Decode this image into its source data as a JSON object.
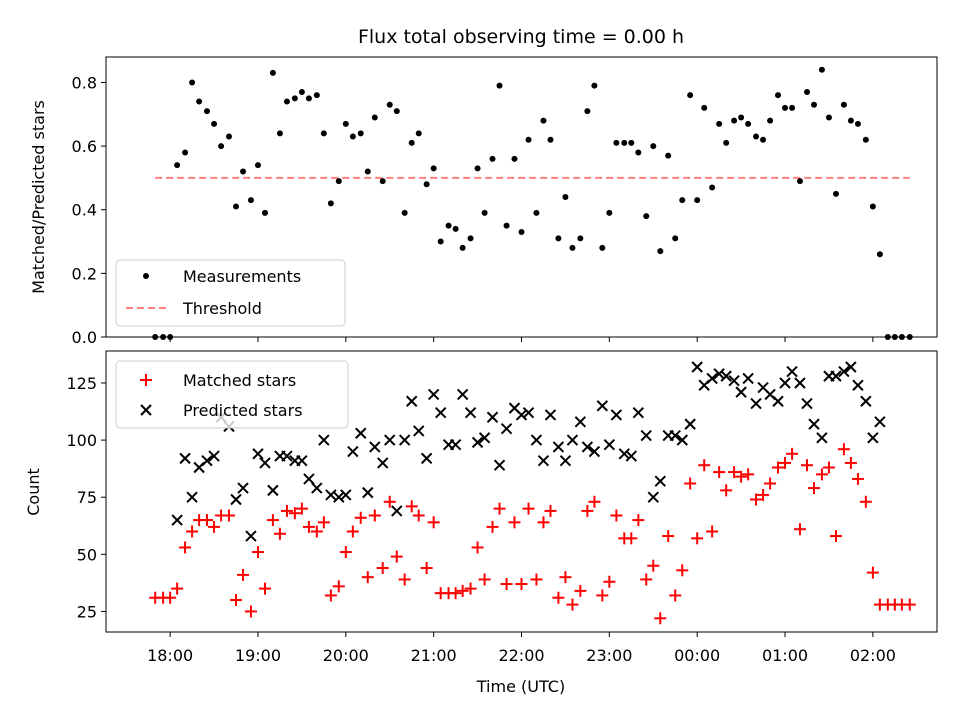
{
  "chart_data": [
    {
      "type": "scatter",
      "title": "Flux total observing time = 0.00 h",
      "xlabel": "",
      "ylabel": "Matched/Predicted stars",
      "ylim": [
        0,
        0.88
      ],
      "yticks": [
        "0.0",
        "0.2",
        "0.4",
        "0.6",
        "0.8"
      ],
      "xlim": [
        17.27,
        26.73
      ],
      "grid": false,
      "legend_position": "lower-left",
      "series": [
        {
          "name": "Measurements",
          "style": "dot",
          "color": "#000000",
          "x": [
            17.83,
            17.92,
            18.0,
            18.08,
            18.17,
            18.25,
            18.33,
            18.42,
            18.5,
            18.58,
            18.67,
            18.75,
            18.83,
            18.92,
            19.0,
            19.08,
            19.17,
            19.25,
            19.33,
            19.42,
            19.5,
            19.58,
            19.67,
            19.75,
            19.83,
            19.92,
            20.0,
            20.08,
            20.17,
            20.25,
            20.33,
            20.42,
            20.5,
            20.58,
            20.67,
            20.75,
            20.83,
            20.92,
            21.0,
            21.08,
            21.17,
            21.25,
            21.33,
            21.42,
            21.5,
            21.58,
            21.67,
            21.75,
            21.83,
            21.92,
            22.0,
            22.08,
            22.17,
            22.25,
            22.33,
            22.42,
            22.5,
            22.58,
            22.67,
            22.75,
            22.83,
            22.92,
            23.0,
            23.08,
            23.17,
            23.25,
            23.33,
            23.42,
            23.5,
            23.58,
            23.67,
            23.75,
            23.83,
            23.92,
            24.0,
            24.08,
            24.17,
            24.25,
            24.33,
            24.42,
            24.5,
            24.58,
            24.67,
            24.75,
            24.83,
            24.92,
            25.0,
            25.08,
            25.17,
            25.25,
            25.33,
            25.42,
            25.5,
            25.58,
            25.67,
            25.75,
            25.83,
            25.92,
            26.0,
            26.08,
            26.17,
            26.25,
            26.33,
            26.42
          ],
          "y": [
            0,
            0,
            0,
            0.54,
            0.58,
            0.8,
            0.74,
            0.71,
            0.67,
            0.6,
            0.63,
            0.41,
            0.52,
            0.43,
            0.54,
            0.39,
            0.83,
            0.64,
            0.74,
            0.75,
            0.77,
            0.75,
            0.76,
            0.64,
            0.42,
            0.49,
            0.67,
            0.63,
            0.64,
            0.52,
            0.69,
            0.49,
            0.73,
            0.71,
            0.39,
            0.61,
            0.64,
            0.48,
            0.53,
            0.3,
            0.35,
            0.34,
            0.28,
            0.31,
            0.53,
            0.39,
            0.56,
            0.79,
            0.35,
            0.56,
            0.33,
            0.62,
            0.39,
            0.68,
            0.62,
            0.31,
            0.44,
            0.28,
            0.31,
            0.71,
            0.79,
            0.28,
            0.39,
            0.61,
            0.61,
            0.61,
            0.58,
            0.38,
            0.6,
            0.27,
            0.57,
            0.31,
            0.43,
            0.76,
            0.43,
            0.72,
            0.47,
            0.67,
            0.61,
            0.68,
            0.69,
            0.67,
            0.63,
            0.62,
            0.68,
            0.76,
            0.72,
            0.72,
            0.49,
            0.77,
            0.73,
            0.84,
            0.69,
            0.45,
            0.73,
            0.68,
            0.67,
            0.62,
            0.41,
            0.26,
            0,
            0,
            0,
            0
          ]
        },
        {
          "name": "Threshold",
          "style": "dashed-line",
          "color": "#ff7f7f",
          "x": [
            17.83,
            26.42
          ],
          "y": [
            0.5,
            0.5
          ]
        }
      ]
    },
    {
      "type": "scatter",
      "title": "",
      "xlabel": "Time (UTC)",
      "ylabel": "Count",
      "ylim": [
        16,
        139
      ],
      "yticks": [
        "25",
        "50",
        "75",
        "100",
        "125"
      ],
      "xlim": [
        17.27,
        26.73
      ],
      "categories": [
        "18:00",
        "19:00",
        "20:00",
        "21:00",
        "22:00",
        "23:00",
        "00:00",
        "01:00",
        "02:00"
      ],
      "grid": false,
      "legend_position": "top-left",
      "series": [
        {
          "name": "Matched stars",
          "style": "plus",
          "color": "#ff0000",
          "x": [
            17.83,
            17.92,
            18.0,
            18.08,
            18.17,
            18.25,
            18.33,
            18.42,
            18.5,
            18.58,
            18.67,
            18.75,
            18.83,
            18.92,
            19.0,
            19.08,
            19.17,
            19.25,
            19.33,
            19.42,
            19.5,
            19.58,
            19.67,
            19.75,
            19.83,
            19.92,
            20.0,
            20.08,
            20.17,
            20.25,
            20.33,
            20.42,
            20.5,
            20.58,
            20.67,
            20.75,
            20.83,
            20.92,
            21.0,
            21.08,
            21.17,
            21.25,
            21.33,
            21.42,
            21.5,
            21.58,
            21.67,
            21.75,
            21.83,
            21.92,
            22.0,
            22.08,
            22.17,
            22.25,
            22.33,
            22.42,
            22.5,
            22.58,
            22.67,
            22.75,
            22.83,
            22.92,
            23.0,
            23.08,
            23.17,
            23.25,
            23.33,
            23.42,
            23.5,
            23.58,
            23.67,
            23.75,
            23.83,
            23.92,
            24.0,
            24.08,
            24.17,
            24.25,
            24.33,
            24.42,
            24.5,
            24.58,
            24.67,
            24.75,
            24.83,
            24.92,
            25.0,
            25.08,
            25.17,
            25.25,
            25.33,
            25.42,
            25.5,
            25.58,
            25.67,
            25.75,
            25.83,
            25.92,
            26.0,
            26.08,
            26.17,
            26.25,
            26.33,
            26.42
          ],
          "y": [
            31,
            31,
            31,
            35,
            53,
            60,
            65,
            65,
            62,
            67,
            67,
            30,
            41,
            25,
            51,
            35,
            65,
            59,
            69,
            68,
            70,
            62,
            60,
            64,
            32,
            36,
            51,
            60,
            66,
            40,
            67,
            44,
            73,
            49,
            39,
            71,
            67,
            44,
            64,
            33,
            33,
            33,
            34,
            35,
            53,
            39,
            62,
            70,
            37,
            64,
            37,
            70,
            39,
            64,
            69,
            31,
            40,
            28,
            34,
            69,
            73,
            32,
            38,
            67,
            57,
            57,
            65,
            39,
            45,
            22,
            58,
            32,
            43,
            81,
            57,
            89,
            60,
            86,
            78,
            86,
            84,
            85,
            74,
            76,
            81,
            88,
            90,
            94,
            61,
            89,
            79,
            85,
            88,
            58,
            96,
            90,
            83,
            73,
            42,
            28,
            28,
            28,
            28,
            28
          ]
        },
        {
          "name": "Predicted stars",
          "style": "x",
          "color": "#000000",
          "x": [
            18.08,
            18.17,
            18.25,
            18.33,
            18.42,
            18.5,
            18.58,
            18.67,
            18.75,
            18.83,
            18.92,
            19.0,
            19.08,
            19.17,
            19.25,
            19.33,
            19.42,
            19.5,
            19.58,
            19.67,
            19.75,
            19.83,
            19.92,
            20.0,
            20.08,
            20.17,
            20.25,
            20.33,
            20.42,
            20.5,
            20.58,
            20.67,
            20.75,
            20.83,
            20.92,
            21.0,
            21.08,
            21.17,
            21.25,
            21.33,
            21.42,
            21.5,
            21.58,
            21.67,
            21.75,
            21.83,
            21.92,
            22.0,
            22.08,
            22.17,
            22.25,
            22.33,
            22.42,
            22.5,
            22.58,
            22.67,
            22.75,
            22.83,
            22.92,
            23.0,
            23.08,
            23.17,
            23.25,
            23.33,
            23.42,
            23.5,
            23.58,
            23.67,
            23.75,
            23.83,
            23.92,
            24.0,
            24.08,
            24.17,
            24.25,
            24.33,
            24.42,
            24.5,
            24.58,
            24.67,
            24.75,
            24.83,
            24.92,
            25.0,
            25.08,
            25.17,
            25.25,
            25.33,
            25.42,
            25.5,
            25.58,
            25.67,
            25.75,
            25.83,
            25.92,
            26.0,
            26.08
          ],
          "y": [
            65,
            92,
            75,
            88,
            91,
            93,
            110,
            106,
            74,
            79,
            58,
            94,
            90,
            78,
            93,
            93,
            91,
            91,
            83,
            79,
            100,
            76,
            75,
            76,
            95,
            103,
            77,
            97,
            90,
            100,
            69,
            100,
            117,
            104,
            92,
            120,
            112,
            98,
            98,
            120,
            112,
            99,
            101,
            110,
            89,
            105,
            114,
            111,
            112,
            100,
            91,
            111,
            97,
            91,
            100,
            108,
            97,
            95,
            115,
            98,
            111,
            94,
            93,
            112,
            102,
            75,
            82,
            102,
            102,
            100,
            107,
            132,
            124,
            127,
            129,
            128,
            126,
            121,
            127,
            116,
            123,
            120,
            117,
            125,
            130,
            125,
            116,
            107,
            101,
            128,
            128,
            130,
            132,
            124,
            117,
            101,
            108
          ]
        }
      ]
    }
  ]
}
